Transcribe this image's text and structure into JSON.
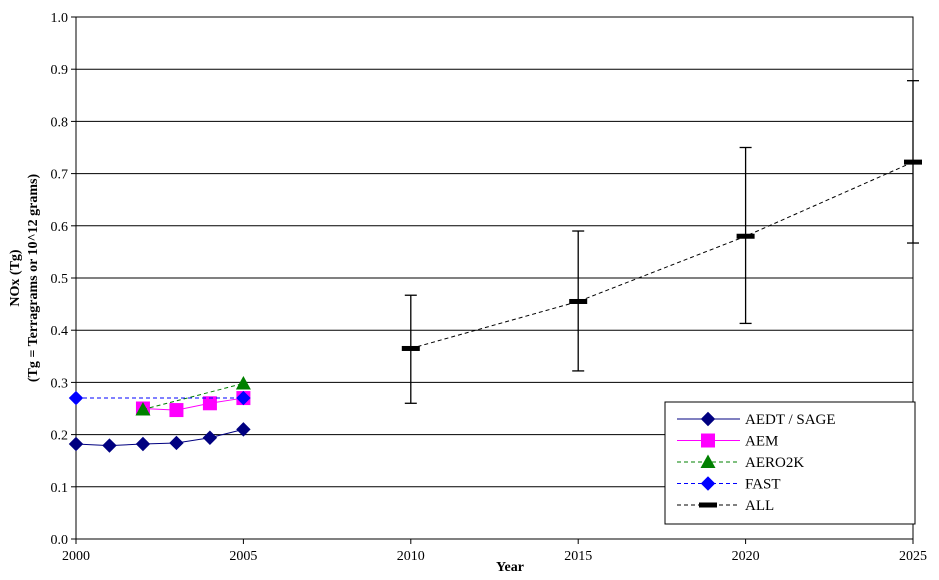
{
  "chart_data": {
    "type": "line",
    "xlabel": "Year",
    "ylabel_line1": "NOx (Tg)",
    "ylabel_line2": "(Tg = Terragrams or 10^12 grams)",
    "xlim": [
      2000,
      2025
    ],
    "ylim": [
      0.0,
      1.0
    ],
    "x_ticks": [
      2000,
      2005,
      2010,
      2015,
      2020,
      2025
    ],
    "x_tick_labels": [
      "2000",
      "2005",
      "2010",
      "2015",
      "2020",
      "2025"
    ],
    "y_ticks": [
      0.0,
      0.1,
      0.2,
      0.3,
      0.4,
      0.5,
      0.6,
      0.7,
      0.8,
      0.9,
      1.0
    ],
    "y_tick_labels": [
      "0.0",
      "0.1",
      "0.2",
      "0.3",
      "0.4",
      "0.5",
      "0.6",
      "0.7",
      "0.8",
      "0.9",
      "1.0"
    ],
    "grid": "horizontal",
    "legend_position": "bottom-right",
    "series": [
      {
        "name": "AEDT / SAGE",
        "color": "#000080",
        "marker": "diamond",
        "line": "solid",
        "x": [
          2000,
          2001,
          2002,
          2003,
          2004,
          2005
        ],
        "y": [
          0.182,
          0.179,
          0.182,
          0.184,
          0.194,
          0.21
        ]
      },
      {
        "name": "AEM",
        "color": "#ff00ff",
        "marker": "square",
        "line": "solid",
        "x": [
          2002,
          2003,
          2004,
          2005
        ],
        "y": [
          0.25,
          0.247,
          0.26,
          0.27
        ]
      },
      {
        "name": "AERO2K",
        "color": "#008000",
        "marker": "triangle",
        "line": "dashed",
        "x": [
          2002,
          2005
        ],
        "y": [
          0.248,
          0.298
        ]
      },
      {
        "name": "FAST",
        "color": "#0000ff",
        "marker": "diamond",
        "line": "dashed",
        "x": [
          2000,
          2005
        ],
        "y": [
          0.27,
          0.27
        ]
      },
      {
        "name": "ALL",
        "color": "#000000",
        "marker": "dash",
        "line": "dashed",
        "x": [
          2010,
          2015,
          2020,
          2025
        ],
        "y": [
          0.365,
          0.455,
          0.58,
          0.722
        ],
        "y_low": [
          0.26,
          0.322,
          0.413,
          0.567
        ],
        "y_high": [
          0.467,
          0.59,
          0.75,
          0.878
        ]
      }
    ]
  }
}
